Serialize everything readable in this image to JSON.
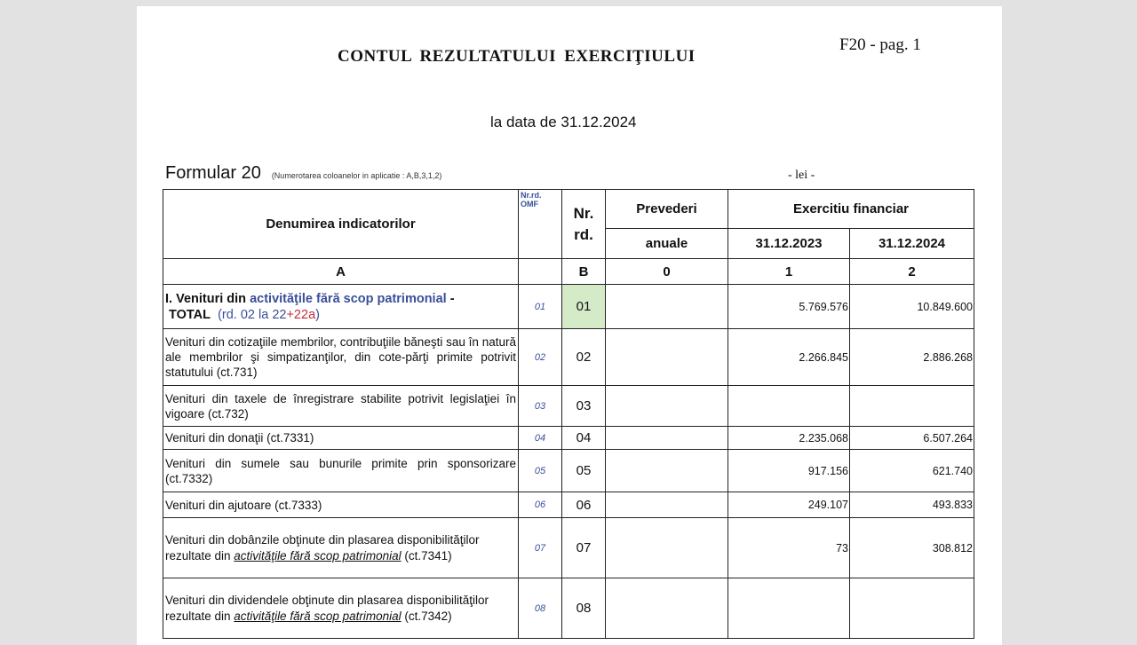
{
  "header": {
    "title": "CONTUL  REZULTATULUI  EXERCIŢIULUI",
    "page": "F20 - pag. 1",
    "date_label": "la data de  31.12.2024",
    "form_name": "Formular 20",
    "form_note": "(Numerotarea coloanelor in aplicatie  : A,B,3,1,2)",
    "currency": "- lei -"
  },
  "columns": {
    "name": "Denumirea indicatorilor",
    "omf": "Nr.rd. OMF",
    "nr": "Nr. rd.",
    "prev_1": "Prevederi",
    "prev_2": "anuale",
    "ex": "Exercitiu  financiar",
    "y1": "31.12.2023",
    "y2": "31.12.2024",
    "l_a": "A",
    "l_b": "B",
    "l_0": "0",
    "l_1": "1",
    "l_2": "2"
  },
  "row1": {
    "p1": "I. Venituri din ",
    "p2": "activităţile fără scop patrimonial",
    "p3": " -",
    "p4": "TOTAL",
    "p5": "(rd. 02 la 22",
    "p6": "+22a",
    ")": ")",
    "omf": "01",
    "nr": "01",
    "v1": "5.769.576",
    "v2": "10.849.600"
  },
  "rows": [
    {
      "text": "Veniturі din cotizaţiile membrilor, contribuţiile băneşti sau în natură ale membrilor şi simpatizanţilor, din cote-părţi primite potrivit statutului (ct.731)",
      "omf": "02",
      "nr": "02",
      "v1": "2.266.845",
      "v2": "2.886.268"
    },
    {
      "text": "Venituri din taxele de înregistrare stabilite potrivit legislaţiei în vigoare (ct.732)",
      "omf": "03",
      "nr": "03",
      "v1": "",
      "v2": ""
    },
    {
      "text": "Venituri din donaţii  (ct.7331)",
      "omf": "04",
      "nr": "04",
      "v1": "2.235.068",
      "v2": "6.507.264"
    },
    {
      "text": "Venituri din sumele sau bunurile primite prin sponsorizare (ct.7332)",
      "omf": "05",
      "nr": "05",
      "v1": "917.156",
      "v2": "621.740"
    },
    {
      "text": "Venituri din ajutoare (ct.7333)",
      "omf": "06",
      "nr": "06",
      "v1": "249.107",
      "v2": "493.833"
    }
  ],
  "row7": {
    "a": "Venituri din dobânzile obţinute din plasarea disponibilităţilor rezultate din ",
    "b": "activităţile fără scop patrimonial",
    "c": " (ct.7341)",
    "omf": "07",
    "nr": "07",
    "v1": "73",
    "v2": "308.812"
  },
  "row8": {
    "a": "Venituri din dividendele obţinute din plasarea disponibilităţilor rezultate din ",
    "b": "activităţile fără scop patrimonial",
    "c": " (ct.7342)",
    "omf": "08",
    "nr": "08",
    "v1": "",
    "v2": ""
  }
}
